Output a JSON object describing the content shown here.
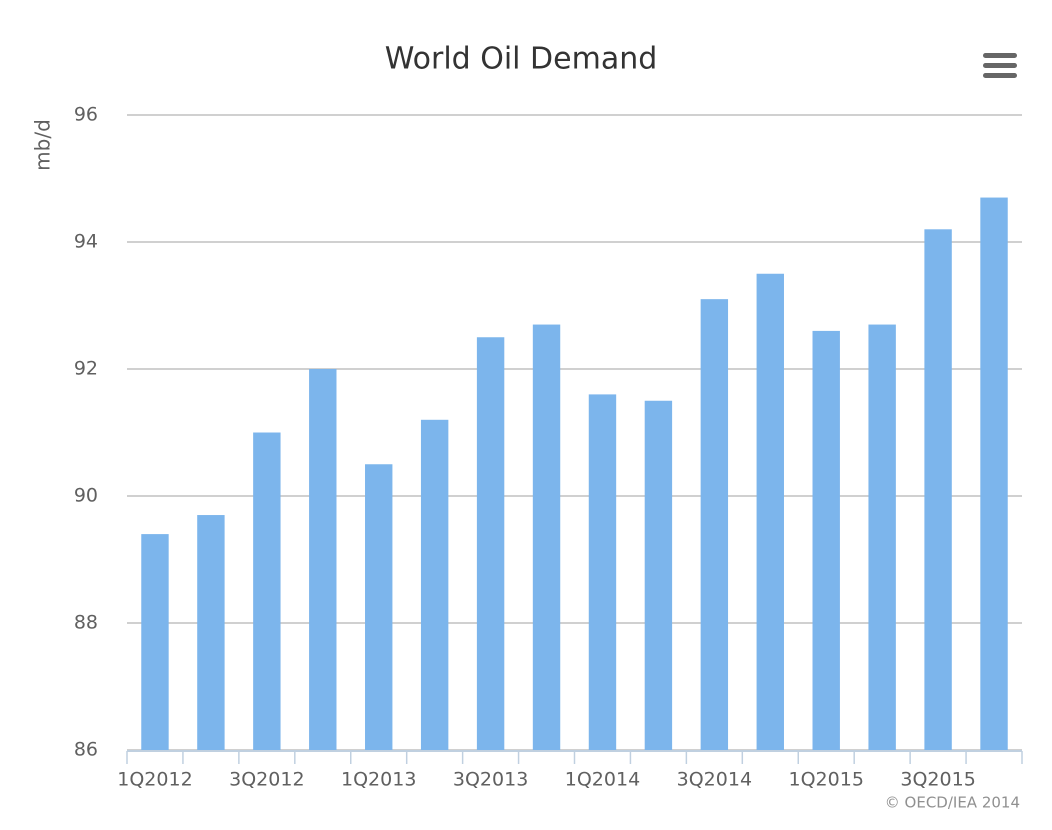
{
  "chart_data": {
    "type": "bar",
    "title": "World Oil Demand",
    "y_label": "mb/d",
    "credit": "© OECD/IEA 2014",
    "categories": [
      "1Q2012",
      null,
      "3Q2012",
      null,
      "1Q2013",
      null,
      "3Q2013",
      null,
      "1Q2014",
      null,
      "3Q2014",
      null,
      "1Q2015",
      null,
      "3Q2015",
      null
    ],
    "values": [
      89.4,
      89.7,
      91.0,
      92.0,
      90.5,
      91.2,
      92.5,
      92.7,
      91.6,
      91.5,
      93.1,
      93.5,
      92.6,
      92.7,
      94.2,
      94.7
    ],
    "color": "#7cb5ec",
    "ylim": [
      86,
      96
    ],
    "yticks": [
      86,
      88,
      90,
      92,
      94,
      96
    ],
    "grid": true
  }
}
